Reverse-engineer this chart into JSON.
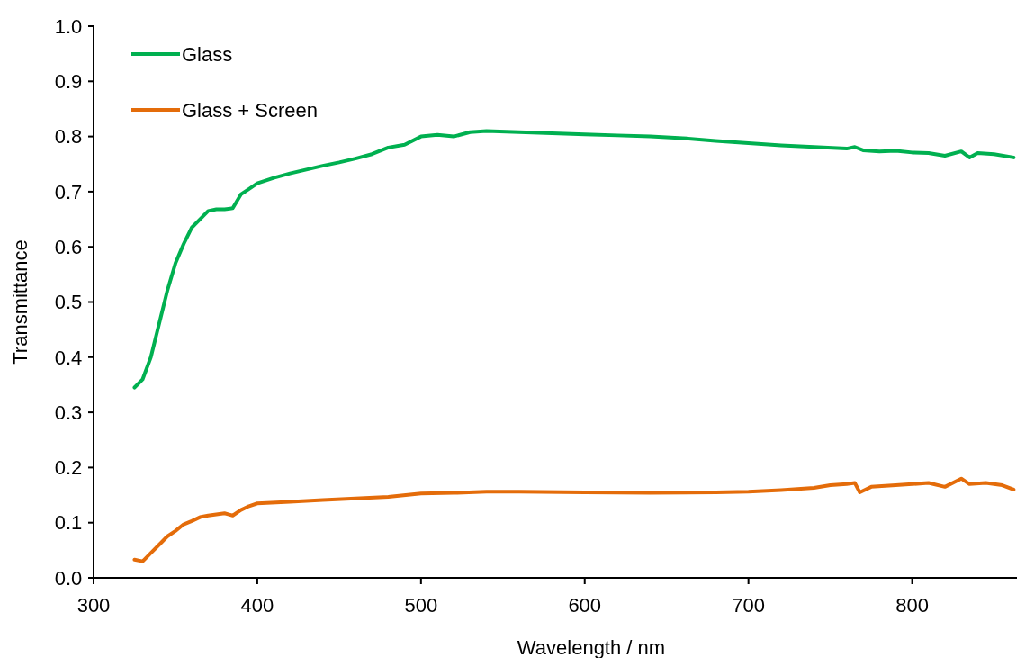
{
  "chart_data": {
    "type": "line",
    "xlabel": "Wavelength / nm",
    "ylabel": "Transmittance",
    "xlim": [
      300,
      864
    ],
    "xticks": [
      300,
      400,
      500,
      600,
      700,
      800
    ],
    "ylim": [
      0,
      1
    ],
    "yticks": [
      {
        "value": 0,
        "label": "0.0"
      },
      {
        "value": 0.1,
        "label": "0.1"
      },
      {
        "value": 0.2,
        "label": "0.2"
      },
      {
        "value": 0.3,
        "label": "0.3"
      },
      {
        "value": 0.4,
        "label": "0.4"
      },
      {
        "value": 0.5,
        "label": "0.5"
      },
      {
        "value": 0.6,
        "label": "0.6"
      },
      {
        "value": 0.7,
        "label": "0.7"
      },
      {
        "value": 0.8,
        "label": "0.8"
      },
      {
        "value": 0.9,
        "label": "0.9"
      },
      {
        "value": 1,
        "label": "1.0"
      }
    ],
    "grid": false,
    "legend": "top left",
    "marker": "none",
    "line_style": "solid",
    "series": [
      {
        "name": "Glass",
        "color": "#00b050",
        "x": [
          325,
          330,
          335,
          340,
          345,
          350,
          355,
          360,
          365,
          370,
          375,
          380,
          385,
          390,
          395,
          400,
          410,
          420,
          430,
          440,
          450,
          460,
          470,
          480,
          490,
          500,
          510,
          520,
          530,
          540,
          560,
          580,
          600,
          620,
          640,
          660,
          680,
          700,
          720,
          740,
          760,
          765,
          770,
          780,
          790,
          800,
          810,
          820,
          830,
          835,
          840,
          850,
          862
        ],
        "values": [
          0.345,
          0.36,
          0.4,
          0.46,
          0.52,
          0.57,
          0.605,
          0.635,
          0.65,
          0.665,
          0.668,
          0.668,
          0.67,
          0.695,
          0.705,
          0.715,
          0.725,
          0.733,
          0.74,
          0.747,
          0.753,
          0.76,
          0.768,
          0.78,
          0.785,
          0.8,
          0.803,
          0.8,
          0.808,
          0.81,
          0.808,
          0.806,
          0.804,
          0.802,
          0.8,
          0.797,
          0.792,
          0.788,
          0.784,
          0.781,
          0.778,
          0.781,
          0.775,
          0.773,
          0.774,
          0.771,
          0.77,
          0.765,
          0.773,
          0.762,
          0.77,
          0.768,
          0.762
        ]
      },
      {
        "name": "Glass + Screen",
        "color": "#e46c0a",
        "x": [
          325,
          330,
          335,
          340,
          345,
          350,
          355,
          360,
          365,
          370,
          375,
          380,
          385,
          390,
          395,
          400,
          420,
          440,
          460,
          480,
          500,
          520,
          540,
          560,
          600,
          640,
          680,
          700,
          720,
          740,
          750,
          760,
          765,
          768,
          775,
          790,
          800,
          810,
          820,
          830,
          835,
          845,
          855,
          862
        ],
        "values": [
          0.033,
          0.03,
          0.045,
          0.06,
          0.075,
          0.085,
          0.097,
          0.103,
          0.11,
          0.113,
          0.115,
          0.117,
          0.113,
          0.123,
          0.13,
          0.135,
          0.138,
          0.141,
          0.144,
          0.147,
          0.153,
          0.154,
          0.156,
          0.156,
          0.155,
          0.154,
          0.155,
          0.156,
          0.159,
          0.163,
          0.168,
          0.17,
          0.172,
          0.155,
          0.165,
          0.168,
          0.17,
          0.172,
          0.165,
          0.18,
          0.17,
          0.172,
          0.168,
          0.16
        ]
      }
    ]
  }
}
